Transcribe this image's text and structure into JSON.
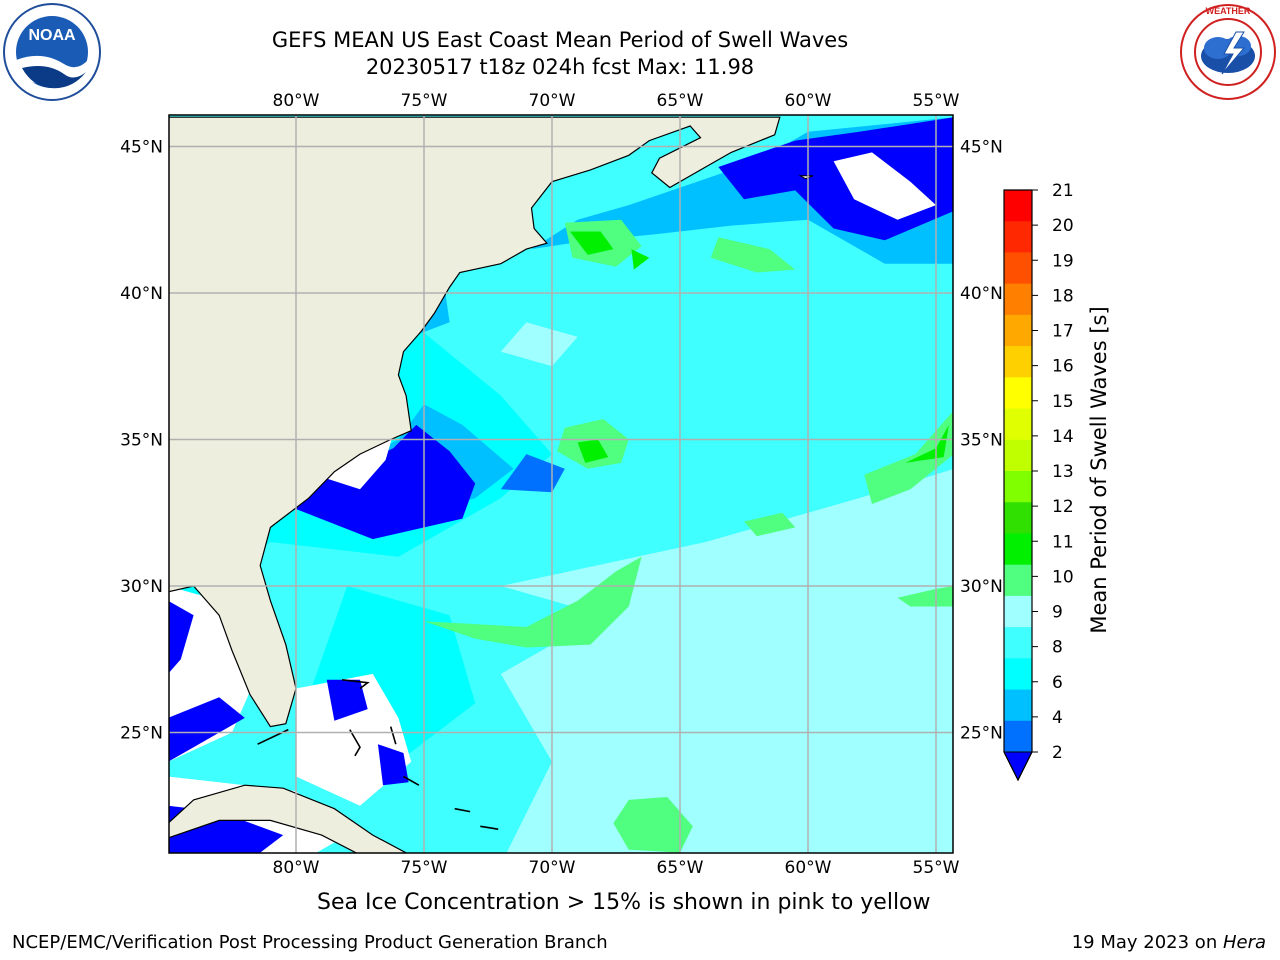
{
  "title": {
    "line1": "GEFS MEAN US East Coast Mean Period of Swell Waves",
    "line2": "20230517 t18z 024h fcst   Max: 11.98"
  },
  "logos": {
    "left": {
      "icon": "noaa-logo",
      "text": "NOAA"
    },
    "right": {
      "icon": "national-weather-service-logo",
      "text": "NATIONAL WEATHER SERVICE"
    }
  },
  "map": {
    "lon_labels": [
      "80°W",
      "75°W",
      "70°W",
      "65°W",
      "60°W",
      "55°W"
    ],
    "lat_labels": [
      "45°N",
      "40°N",
      "35°N",
      "30°N",
      "25°N"
    ],
    "extent": {
      "lon": [
        -85,
        -54.3
      ],
      "lat": [
        20.5,
        46
      ]
    },
    "colors": {
      "land": "#eeeedf",
      "grid": "#b0b0b0",
      "coast": "#000000"
    }
  },
  "colorbar": {
    "label": "Mean Period of Swell Waves [s]",
    "levels": [
      "21",
      "20",
      "19",
      "18",
      "17",
      "16",
      "15",
      "14",
      "13",
      "12",
      "11",
      "10",
      "9",
      "8",
      "6",
      "4",
      "2"
    ],
    "colors": [
      "#ff0000",
      "#ff2800",
      "#ff5000",
      "#ff8000",
      "#ffa800",
      "#ffd000",
      "#ffff00",
      "#e0ff00",
      "#c0ff00",
      "#80ff00",
      "#30e000",
      "#00f000",
      "#50ff80",
      "#a0ffff",
      "#40ffff",
      "#00ffff",
      "#00c0ff",
      "#0070ff",
      "#0000ff"
    ],
    "under_color": "#0000ff"
  },
  "chart_data": {
    "type": "heatmap",
    "title": "GEFS MEAN US East Coast Mean Period of Swell Waves",
    "subtitle": "20230517 t18z 024h fcst   Max: 11.98",
    "variable": "Mean Period of Swell Waves [s]",
    "max": 11.98,
    "xlabel": "",
    "ylabel": "",
    "x_ticks": [
      "80°W",
      "75°W",
      "70°W",
      "65°W",
      "60°W",
      "55°W"
    ],
    "y_ticks": [
      "45°N",
      "40°N",
      "35°N",
      "30°N",
      "25°N"
    ],
    "colorbar_ticks": [
      2,
      4,
      6,
      8,
      9,
      10,
      11,
      12,
      13,
      14,
      15,
      16,
      17,
      18,
      19,
      20,
      21
    ],
    "grid": true
  },
  "footnote": "Sea Ice Concentration > 15% is shown in pink to yellow",
  "footer": {
    "left": "NCEP/EMC/Verification Post Processing Product Generation Branch",
    "right_prefix": "19 May 2023 on ",
    "right_host": "Hera"
  }
}
